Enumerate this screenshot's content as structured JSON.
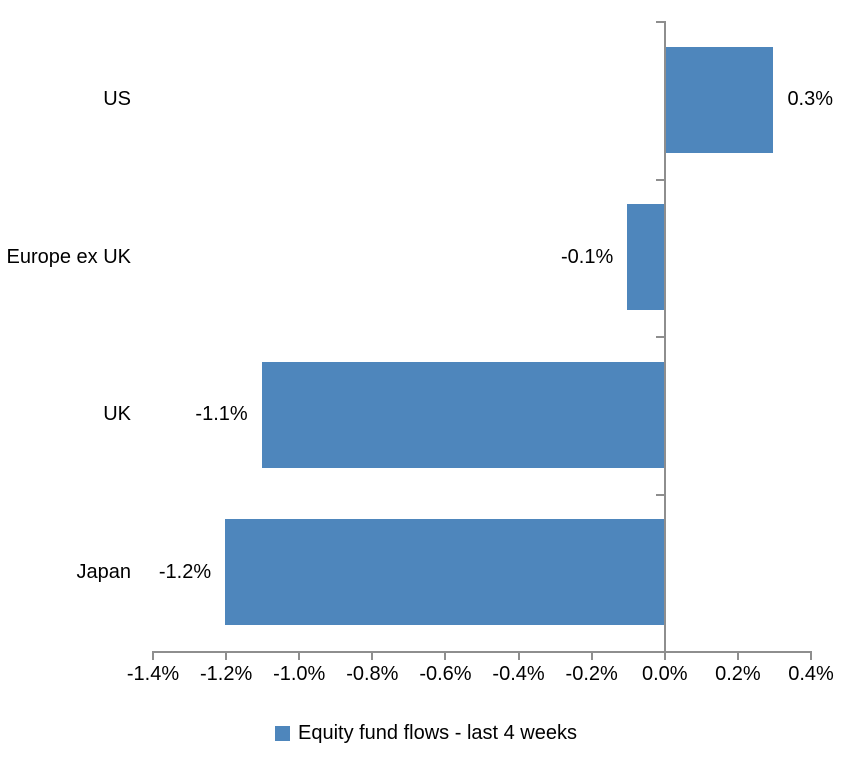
{
  "chart_data": {
    "type": "bar",
    "orientation": "horizontal",
    "title": "",
    "categories": [
      "US",
      "Europe ex UK",
      "UK",
      "Japan"
    ],
    "values": [
      0.3,
      -0.1,
      -1.1,
      -1.2
    ],
    "value_labels": [
      "0.3%",
      "-0.1%",
      "-1.1%",
      "-1.2%"
    ],
    "x_tick_values": [
      -1.4,
      -1.2,
      -1.0,
      -0.8,
      -0.6,
      -0.4,
      -0.2,
      0.0,
      0.2,
      0.4
    ],
    "x_tick_labels": [
      "-1.4%",
      "-1.2%",
      "-1.0%",
      "-0.8%",
      "-0.6%",
      "-0.4%",
      "-0.2%",
      "0.0%",
      "0.2%",
      "0.4%"
    ],
    "xlim": [
      -1.4,
      0.4
    ],
    "grid": false,
    "legend_position": "bottom-center",
    "legend": [
      {
        "label": "Equity fund flows - last 4 weeks",
        "color": "#4e86bc"
      }
    ],
    "colors": {
      "bar": "#4e86bc",
      "axis": "#8e8e8e",
      "text": "#000000",
      "background": "#ffffff"
    }
  }
}
